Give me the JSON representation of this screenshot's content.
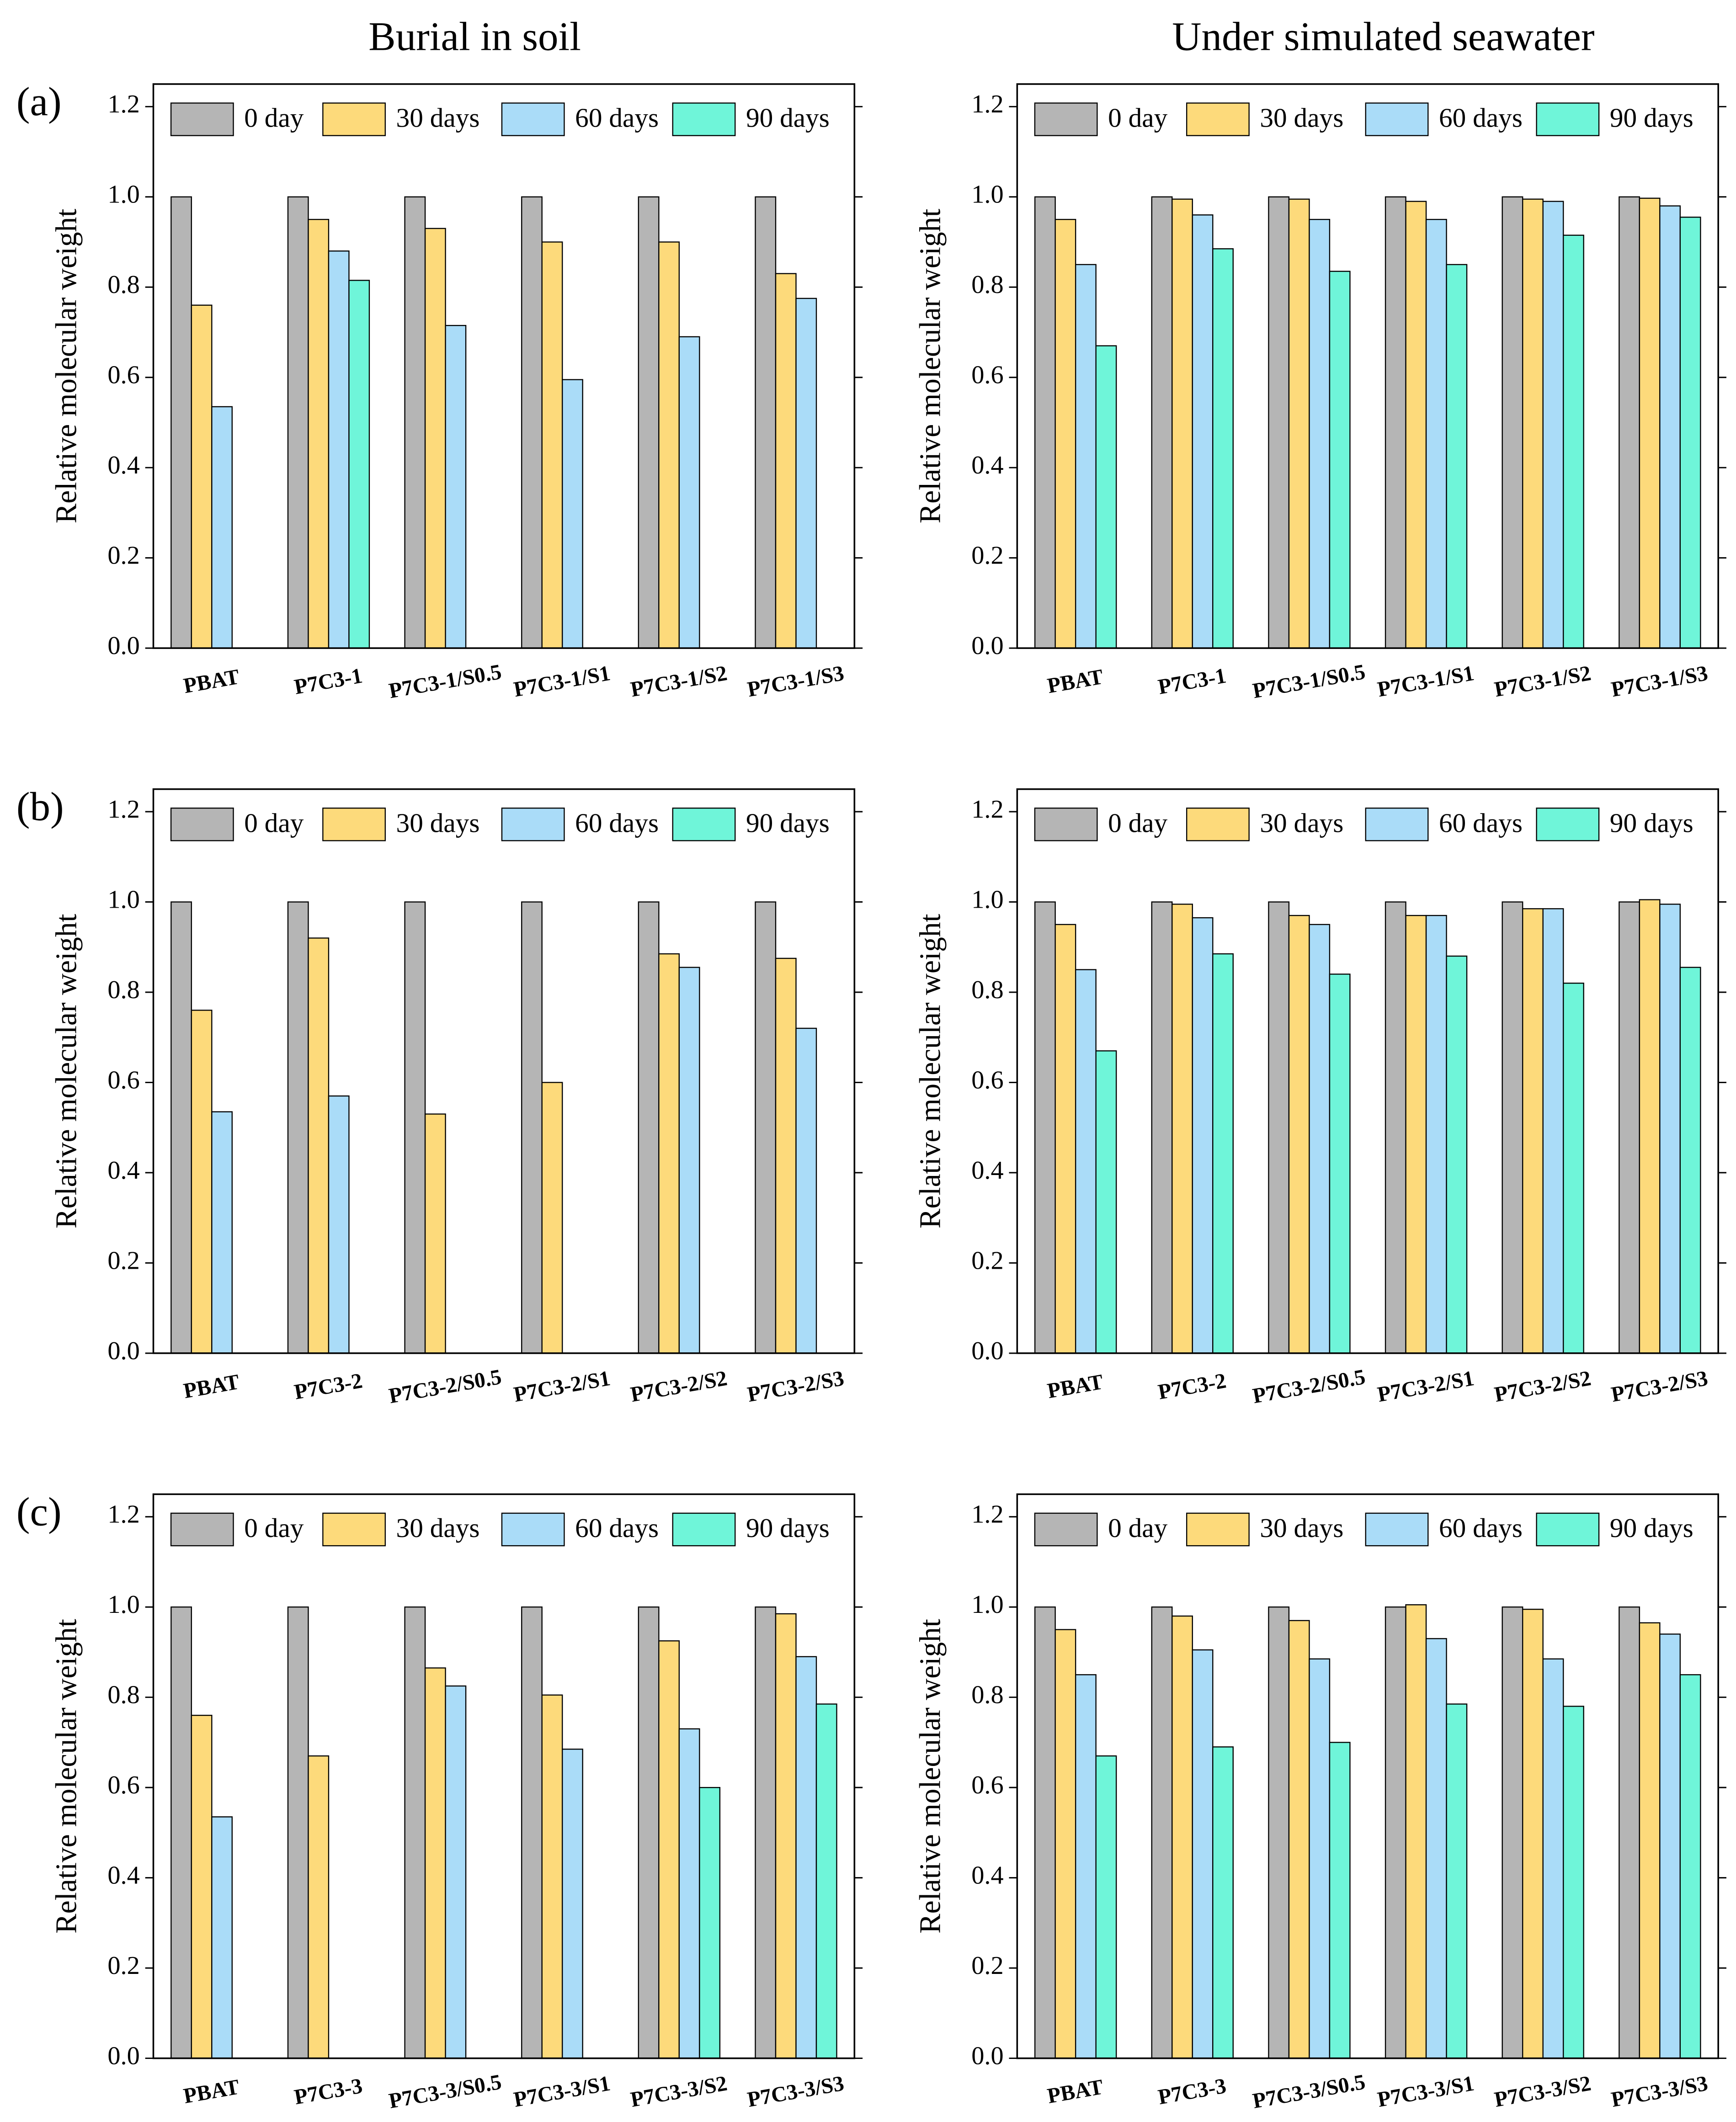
{
  "column_titles": [
    "Burial in soil",
    "Under simulated seawater"
  ],
  "panel_labels": [
    "(a)",
    "(b)",
    "(c)"
  ],
  "chart_data": [
    {
      "type": "bar",
      "ylabel": "Relative molecular weight",
      "legend": "top",
      "categories": [
        "PBAT",
        "P7C3-1",
        "P7C3-1/S0.5",
        "P7C3-1/S1",
        "P7C3-1/S2",
        "P7C3-1/S3"
      ],
      "series": [
        {
          "name": "0 day",
          "color": "#b5b5b5",
          "values": [
            1,
            1,
            1,
            1,
            1,
            1
          ]
        },
        {
          "name": "30 days",
          "color": "#fdda7b",
          "values": [
            0.76,
            0.95,
            0.93,
            0.9,
            0.9,
            0.83
          ]
        },
        {
          "name": "60 days",
          "color": "#aadcf8",
          "values": [
            0.535,
            0.88,
            0.715,
            0.595,
            0.69,
            0.775
          ]
        },
        {
          "name": "90 days",
          "color": "#6ff5d9",
          "values": [
            null,
            0.815,
            null,
            null,
            null,
            null
          ]
        }
      ],
      "ylim": [
        0,
        1.25
      ],
      "yticks": [
        {
          "value": 0,
          "label": "0.0"
        },
        0.2,
        0.4,
        0.6,
        0.8,
        {
          "value": 1,
          "label": "1.0"
        },
        1.2
      ]
    },
    {
      "type": "bar",
      "ylabel": "Relative molecular weight",
      "legend": "top",
      "categories": [
        "PBAT",
        "P7C3-1",
        "P7C3-1/S0.5",
        "P7C3-1/S1",
        "P7C3-1/S2",
        "P7C3-1/S3"
      ],
      "series": [
        {
          "name": "0 day",
          "color": "#b5b5b5",
          "values": [
            1,
            1,
            1,
            1,
            1,
            1
          ]
        },
        {
          "name": "30 days",
          "color": "#fdda7b",
          "values": [
            0.95,
            0.995,
            0.995,
            0.99,
            0.995,
            0.997
          ]
        },
        {
          "name": "60 days",
          "color": "#aadcf8",
          "values": [
            0.85,
            0.96,
            0.95,
            0.95,
            0.99,
            0.98
          ]
        },
        {
          "name": "90 days",
          "color": "#6ff5d9",
          "values": [
            0.67,
            0.885,
            0.835,
            0.85,
            0.915,
            0.955
          ]
        }
      ],
      "ylim": [
        0,
        1.25
      ],
      "yticks": [
        {
          "value": 0,
          "label": "0.0"
        },
        0.2,
        0.4,
        0.6,
        0.8,
        {
          "value": 1,
          "label": "1.0"
        },
        1.2
      ]
    },
    {
      "type": "bar",
      "ylabel": "Relative molecular weight",
      "legend": "top",
      "categories": [
        "PBAT",
        "P7C3-2",
        "P7C3-2/S0.5",
        "P7C3-2/S1",
        "P7C3-2/S2",
        "P7C3-2/S3"
      ],
      "series": [
        {
          "name": "0 day",
          "color": "#b5b5b5",
          "values": [
            1,
            1,
            1,
            1,
            1,
            1
          ]
        },
        {
          "name": "30 days",
          "color": "#fdda7b",
          "values": [
            0.76,
            0.92,
            0.53,
            0.6,
            0.885,
            0.875
          ]
        },
        {
          "name": "60 days",
          "color": "#aadcf8",
          "values": [
            0.535,
            0.57,
            null,
            null,
            0.855,
            0.72
          ]
        },
        {
          "name": "90 days",
          "color": "#6ff5d9",
          "values": [
            null,
            null,
            null,
            null,
            null,
            null
          ]
        }
      ],
      "ylim": [
        0,
        1.25
      ],
      "yticks": [
        {
          "value": 0,
          "label": "0.0"
        },
        0.2,
        0.4,
        0.6,
        0.8,
        {
          "value": 1,
          "label": "1.0"
        },
        1.2
      ]
    },
    {
      "type": "bar",
      "ylabel": "Relative molecular weight",
      "legend": "top",
      "categories": [
        "PBAT",
        "P7C3-2",
        "P7C3-2/S0.5",
        "P7C3-2/S1",
        "P7C3-2/S2",
        "P7C3-2/S3"
      ],
      "series": [
        {
          "name": "0 day",
          "color": "#b5b5b5",
          "values": [
            1,
            1,
            1,
            1,
            1,
            1
          ]
        },
        {
          "name": "30 days",
          "color": "#fdda7b",
          "values": [
            0.95,
            0.995,
            0.97,
            0.97,
            0.985,
            1.005
          ]
        },
        {
          "name": "60 days",
          "color": "#aadcf8",
          "values": [
            0.85,
            0.965,
            0.95,
            0.97,
            0.985,
            0.995
          ]
        },
        {
          "name": "90 days",
          "color": "#6ff5d9",
          "values": [
            0.67,
            0.885,
            0.84,
            0.88,
            0.82,
            0.855
          ]
        }
      ],
      "ylim": [
        0,
        1.25
      ],
      "yticks": [
        {
          "value": 0,
          "label": "0.0"
        },
        0.2,
        0.4,
        0.6,
        0.8,
        {
          "value": 1,
          "label": "1.0"
        },
        1.2
      ]
    },
    {
      "type": "bar",
      "ylabel": "Relative molecular weight",
      "legend": "top",
      "categories": [
        "PBAT",
        "P7C3-3",
        "P7C3-3/S0.5",
        "P7C3-3/S1",
        "P7C3-3/S2",
        "P7C3-3/S3"
      ],
      "series": [
        {
          "name": "0 day",
          "color": "#b5b5b5",
          "values": [
            1,
            1,
            1,
            1,
            1,
            1
          ]
        },
        {
          "name": "30 days",
          "color": "#fdda7b",
          "values": [
            0.76,
            0.67,
            0.865,
            0.805,
            0.925,
            0.985
          ]
        },
        {
          "name": "60 days",
          "color": "#aadcf8",
          "values": [
            0.535,
            null,
            0.825,
            0.685,
            0.73,
            0.89
          ]
        },
        {
          "name": "90 days",
          "color": "#6ff5d9",
          "values": [
            null,
            null,
            null,
            null,
            0.6,
            0.785
          ]
        }
      ],
      "ylim": [
        0,
        1.25
      ],
      "yticks": [
        {
          "value": 0,
          "label": "0.0"
        },
        0.2,
        0.4,
        0.6,
        0.8,
        {
          "value": 1,
          "label": "1.0"
        },
        1.2
      ]
    },
    {
      "type": "bar",
      "ylabel": "Relative molecular weight",
      "legend": "top",
      "categories": [
        "PBAT",
        "P7C3-3",
        "P7C3-3/S0.5",
        "P7C3-3/S1",
        "P7C3-3/S2",
        "P7C3-3/S3"
      ],
      "series": [
        {
          "name": "0 day",
          "color": "#b5b5b5",
          "values": [
            1,
            1,
            1,
            1,
            1,
            1
          ]
        },
        {
          "name": "30 days",
          "color": "#fdda7b",
          "values": [
            0.95,
            0.98,
            0.97,
            1.005,
            0.995,
            0.965
          ]
        },
        {
          "name": "60 days",
          "color": "#aadcf8",
          "values": [
            0.85,
            0.905,
            0.885,
            0.93,
            0.885,
            0.94
          ]
        },
        {
          "name": "90 days",
          "color": "#6ff5d9",
          "values": [
            0.67,
            0.69,
            0.7,
            0.785,
            0.78,
            0.85
          ]
        }
      ],
      "ylim": [
        0,
        1.25
      ],
      "yticks": [
        {
          "value": 0,
          "label": "0.0"
        },
        0.2,
        0.4,
        0.6,
        0.8,
        {
          "value": 1,
          "label": "1.0"
        },
        1.2
      ]
    }
  ]
}
